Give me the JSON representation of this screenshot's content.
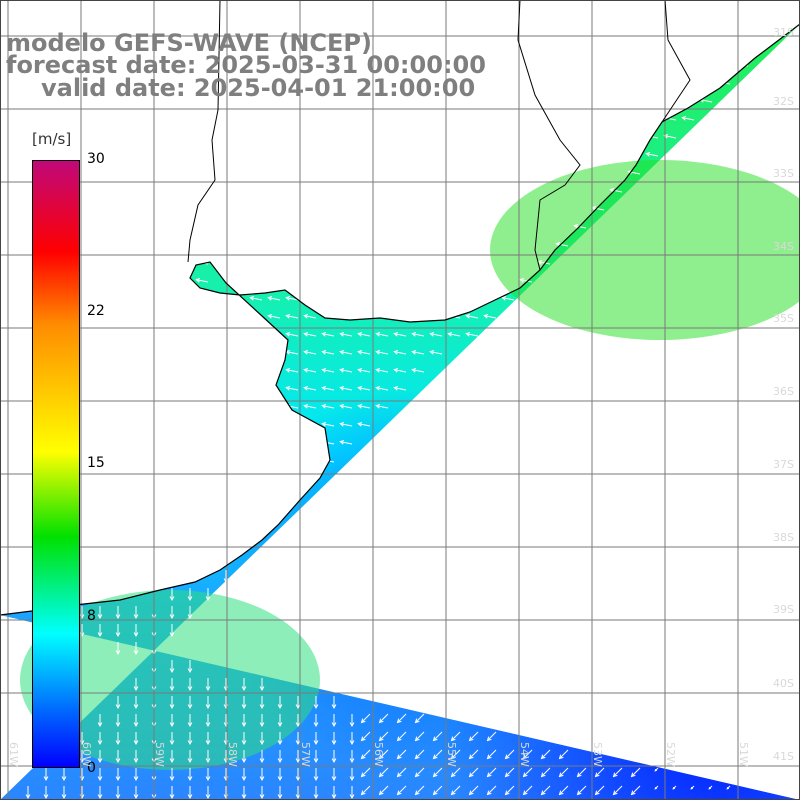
{
  "title": {
    "model": "modelo GEFS-WAVE (NCEP)",
    "forecast": "forecast date: 2025-03-31 00:00:00",
    "valid": "valid date: 2025-04-01 21:00:00"
  },
  "colorbar": {
    "units": "[m/s]",
    "ticks": [
      "30",
      "22",
      "15",
      "8",
      "0"
    ],
    "colors": [
      "#c0087a",
      "#ff0000",
      "#ff8c00",
      "#ffff00",
      "#00e000",
      "#00ffff",
      "#0070ff",
      "#0000ff"
    ]
  },
  "lat_labels": [
    "31S",
    "32S",
    "33S",
    "34S",
    "35S",
    "36S",
    "37S",
    "38S",
    "39S",
    "40S",
    "41S"
  ],
  "lon_labels": [
    "61W",
    "60W",
    "59W",
    "58W",
    "57W",
    "56W",
    "55W",
    "54W",
    "53W",
    "52W",
    "51W"
  ],
  "colors": {
    "land": "#ffffff",
    "coast": "#000000",
    "grid": "#7a7a7a",
    "arrows": "#ffffff"
  }
}
